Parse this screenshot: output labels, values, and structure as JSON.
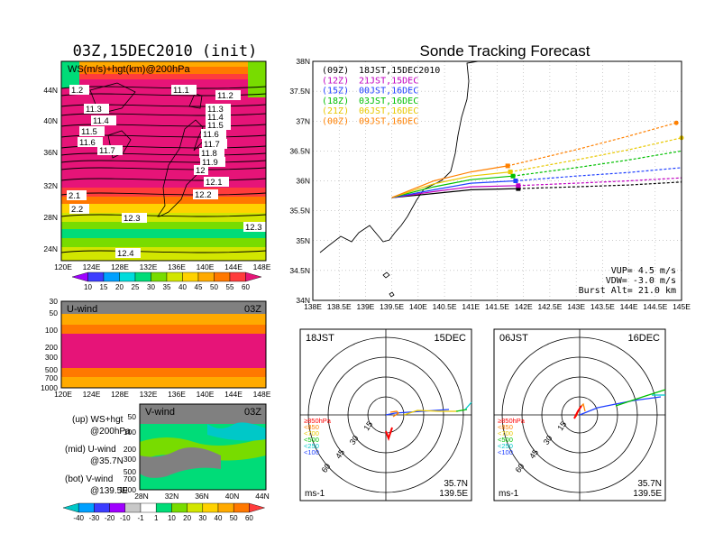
{
  "left": {
    "init_title": "03Z,15DEC2010 (init)",
    "map": {
      "title": "WS(m/s)+hgt(km)@200hPa",
      "lat_labels": [
        "44N",
        "40N",
        "36N",
        "32N",
        "28N",
        "24N"
      ],
      "lon_labels": [
        "120E",
        "124E",
        "128E",
        "132E",
        "136E",
        "140E",
        "144E",
        "148E"
      ],
      "contours": [
        "11.1",
        "11.2",
        "11.3",
        "11.4",
        "11.5",
        "11.6",
        "11.7",
        "11.8",
        "11.9",
        "12",
        "12.1",
        "12.2",
        "12.3",
        "12.4"
      ],
      "contour_labels": [
        "1.2",
        "11.1",
        "11.2",
        "11.3",
        "11.3",
        "11.4",
        "11.4",
        "11.5",
        "11.5",
        "11.6",
        "11.6",
        "11.7",
        "11.7",
        "11.8",
        "11.9",
        "12",
        "12.1",
        "12.2",
        "2.1",
        "2.2",
        "12.3",
        "12.3",
        "12.4"
      ],
      "colorbar": [
        "10",
        "15",
        "20",
        "25",
        "30",
        "35",
        "40",
        "45",
        "50",
        "55",
        "60"
      ],
      "colorbar_colors": [
        "#9f00ff",
        "#3c3cff",
        "#00a0ff",
        "#00dcdc",
        "#00dc78",
        "#78dc00",
        "#d2e600",
        "#ffd200",
        "#ffaa00",
        "#ff7800",
        "#ff3c3c",
        "#e61478"
      ]
    },
    "uwind": {
      "title": "U-wind",
      "time": "03Z",
      "p_labels": [
        "30",
        "50",
        "100",
        "200",
        "300",
        "500",
        "700",
        "1000"
      ],
      "lon_labels": [
        "120E",
        "124E",
        "128E",
        "132E",
        "136E",
        "140E",
        "144E",
        "148E"
      ]
    },
    "vwind": {
      "title": "V-wind",
      "time": "03Z",
      "p_labels": [
        "50",
        "100",
        "200",
        "300",
        "500",
        "700",
        "1000"
      ],
      "lat_labels": [
        "28N",
        "32N",
        "36N",
        "40N",
        "44N"
      ]
    },
    "legend_text": {
      "up1": "(up) WS+hgt",
      "up2": "@200hPa",
      "mid1": "(mid) U-wind",
      "mid2": "@35.7N",
      "bot1": "(bot) V-wind",
      "bot2": "@139.5E"
    },
    "colorbar2": [
      "-40",
      "-30",
      "-20",
      "-10",
      "-1",
      "1",
      "10",
      "20",
      "30",
      "40",
      "50",
      "60"
    ],
    "colorbar2_colors": [
      "#00c8c8",
      "#00a0ff",
      "#3c3cff",
      "#9f00ff",
      "#c8c8c8",
      "#ffffff",
      "#00dc78",
      "#78dc00",
      "#d2e600",
      "#ffd200",
      "#ffaa00",
      "#ff7800",
      "#ff3c3c"
    ]
  },
  "chart_data": {
    "type": "line",
    "title": "Sonde Tracking Forecast",
    "xlim": [
      138,
      145
    ],
    "ylim": [
      34,
      38
    ],
    "x_ticks": [
      "138E",
      "138.5E",
      "139E",
      "139.5E",
      "140E",
      "140.5E",
      "141E",
      "141.5E",
      "142E",
      "142.5E",
      "143E",
      "143.5E",
      "144E",
      "144.5E",
      "145E"
    ],
    "y_ticks": [
      "34N",
      "34.5N",
      "35N",
      "35.5N",
      "36N",
      "36.5N",
      "37N",
      "37.5N",
      "38N"
    ],
    "series": [
      {
        "launch": "(09Z)",
        "label": "18JST,15DEC2010",
        "color": "#000000",
        "points": [
          [
            139.5,
            35.72
          ],
          [
            140.2,
            35.78
          ],
          [
            141.0,
            35.85
          ],
          [
            141.9,
            35.87
          ],
          [
            143.0,
            35.9
          ],
          [
            144.0,
            35.93
          ],
          [
            145.0,
            35.98
          ]
        ],
        "solid_end": 141.9
      },
      {
        "launch": "(12Z)",
        "label": "21JST,15DEC",
        "color": "#c000c0",
        "points": [
          [
            139.5,
            35.72
          ],
          [
            140.3,
            35.82
          ],
          [
            141.0,
            35.9
          ],
          [
            141.9,
            35.92
          ],
          [
            143.0,
            35.96
          ],
          [
            144.0,
            36.0
          ],
          [
            145.0,
            36.05
          ]
        ],
        "solid_end": 141.9
      },
      {
        "launch": "(15Z)",
        "label": "00JST,16DEC",
        "color": "#2040ff",
        "points": [
          [
            139.5,
            35.72
          ],
          [
            140.3,
            35.85
          ],
          [
            141.0,
            35.96
          ],
          [
            141.85,
            36.0
          ],
          [
            143.0,
            36.08
          ],
          [
            144.0,
            36.14
          ],
          [
            145.0,
            36.22
          ]
        ],
        "solid_end": 141.85
      },
      {
        "launch": "(18Z)",
        "label": "03JST,16DEC",
        "color": "#00c000",
        "points": [
          [
            139.5,
            35.72
          ],
          [
            140.3,
            35.9
          ],
          [
            141.0,
            36.02
          ],
          [
            141.8,
            36.08
          ],
          [
            143.0,
            36.22
          ],
          [
            144.0,
            36.35
          ],
          [
            145.0,
            36.5
          ]
        ],
        "solid_end": 141.8
      },
      {
        "launch": "(21Z)",
        "label": "06JST,16DEC",
        "color": "#e8c800",
        "points": [
          [
            139.5,
            35.72
          ],
          [
            140.3,
            35.95
          ],
          [
            141.0,
            36.08
          ],
          [
            141.75,
            36.15
          ],
          [
            143.0,
            36.35
          ],
          [
            144.0,
            36.52
          ],
          [
            145.0,
            36.72
          ]
        ],
        "solid_end": 141.75
      },
      {
        "launch": "(00Z)",
        "label": "09JST,16DEC",
        "color": "#ff8000",
        "points": [
          [
            139.5,
            35.72
          ],
          [
            140.3,
            36.0
          ],
          [
            141.0,
            36.15
          ],
          [
            141.7,
            36.25
          ],
          [
            143.0,
            36.52
          ],
          [
            144.0,
            36.75
          ],
          [
            144.9,
            36.97
          ]
        ],
        "solid_end": 141.7
      }
    ],
    "params": {
      "vup": "VUP= 4.5 m/s",
      "vdw": "VDW= -3.0 m/s",
      "burst": "Burst Alt= 21.0 km"
    }
  },
  "polar": [
    {
      "time": "18JST",
      "date": "15DEC",
      "lat": "35.7N",
      "lon": "139.5E",
      "unit": "ms-1",
      "rings": [
        "15",
        "30",
        "45",
        "60"
      ],
      "legend": [
        {
          "t": "≥850hPa",
          "c": "#ff0000"
        },
        {
          "t": "<850",
          "c": "#ff8000"
        },
        {
          "t": "<700",
          "c": "#e8c800"
        },
        {
          "t": "<500",
          "c": "#00c000"
        },
        {
          "t": "<250",
          "c": "#00c8c8"
        },
        {
          "t": "<100",
          "c": "#2040ff"
        }
      ]
    },
    {
      "time": "06JST",
      "date": "16DEC",
      "lat": "35.7N",
      "lon": "139.5E",
      "unit": "ms-1",
      "rings": [
        "15",
        "30",
        "45",
        "60"
      ],
      "legend": [
        {
          "t": "≥850hPa",
          "c": "#ff0000"
        },
        {
          "t": "<850",
          "c": "#ff8000"
        },
        {
          "t": "<700",
          "c": "#e8c800"
        },
        {
          "t": "<500",
          "c": "#00c000"
        },
        {
          "t": "<250",
          "c": "#00c8c8"
        },
        {
          "t": "<100",
          "c": "#2040ff"
        }
      ]
    }
  ]
}
